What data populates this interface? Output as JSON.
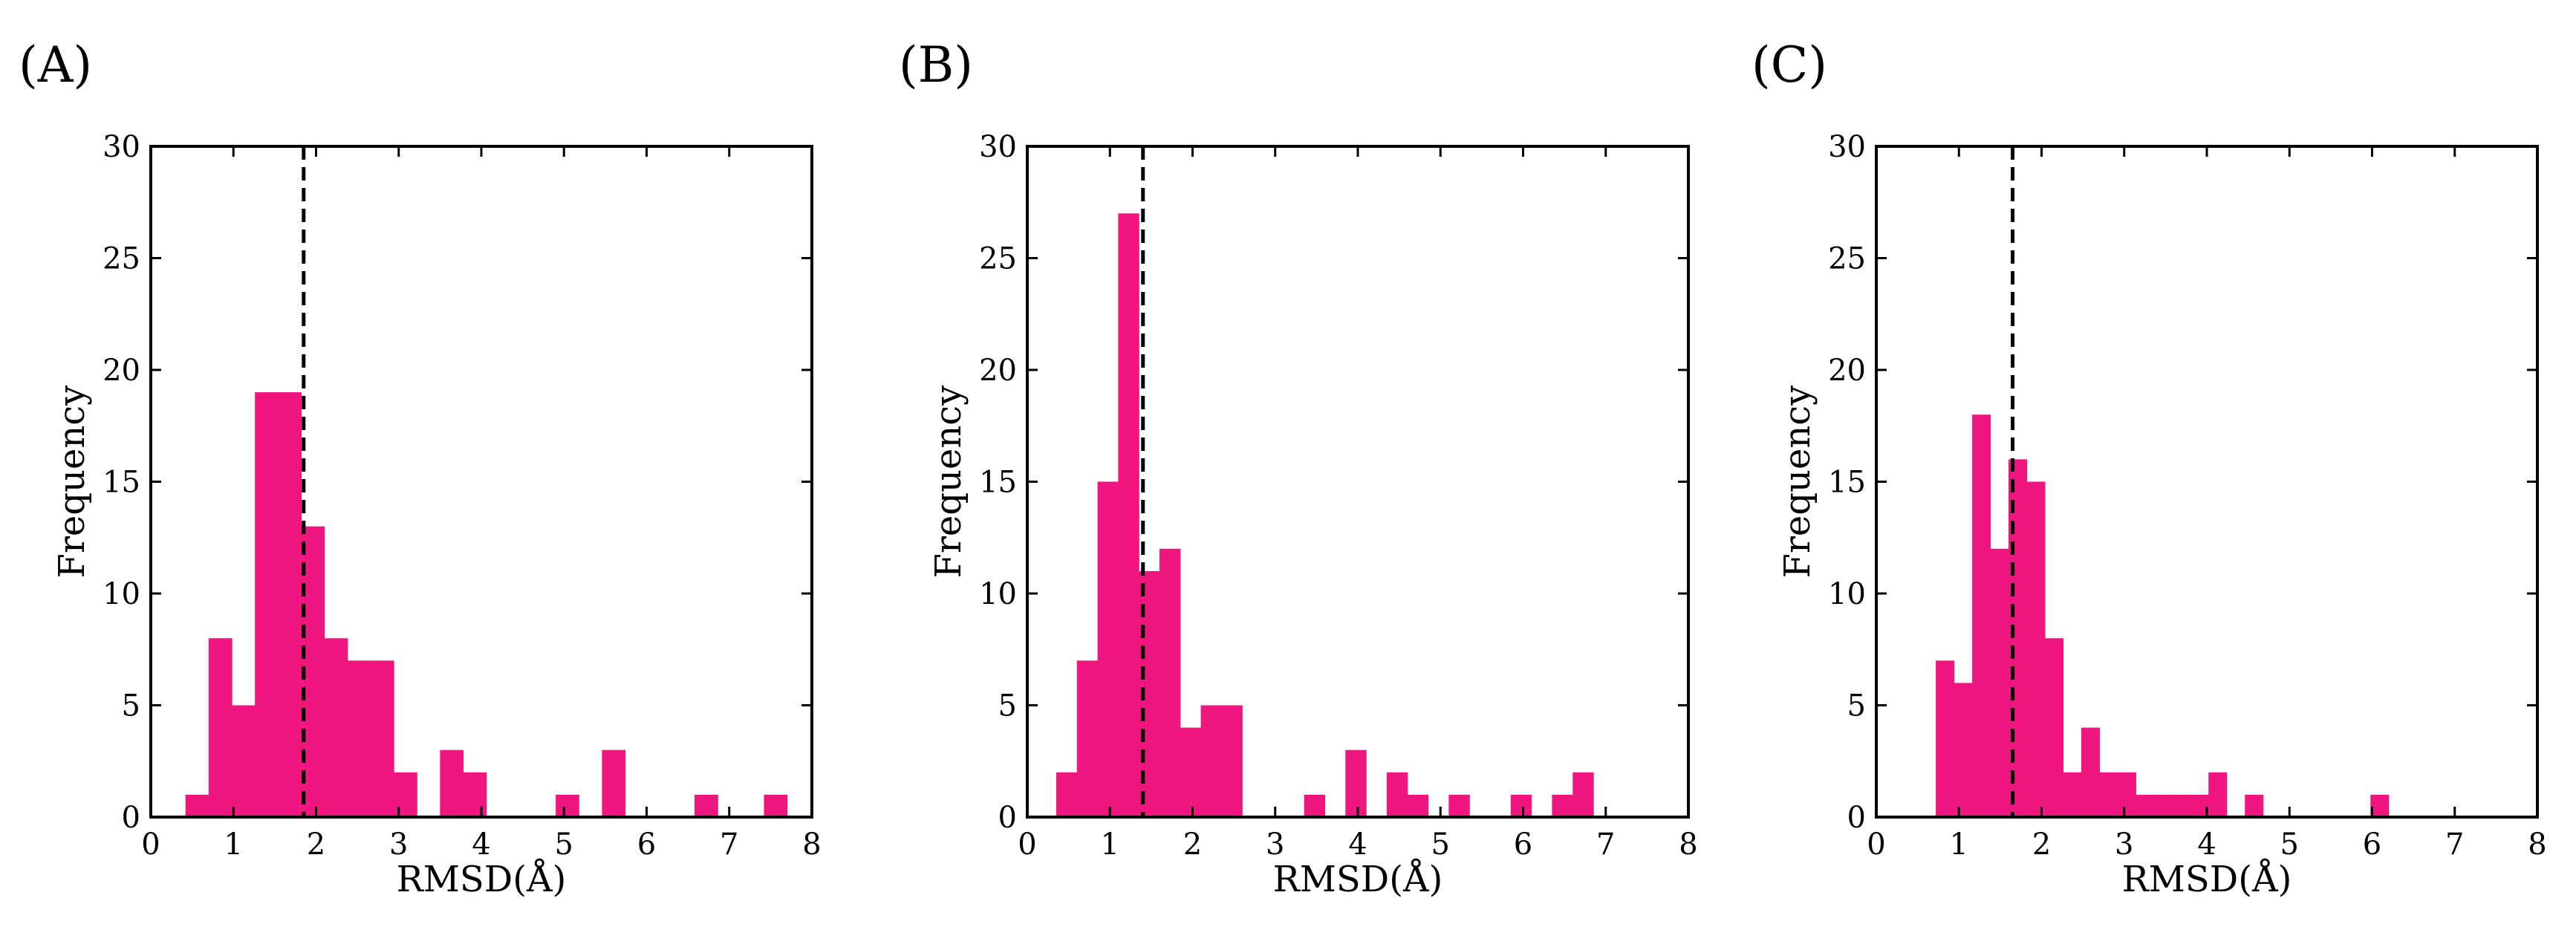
{
  "chart_data": [
    {
      "type": "bar",
      "panel_label": "(A)",
      "xlabel": "RMSD(Å)",
      "ylabel": "Frequency",
      "xlim": [
        0,
        8
      ],
      "ylim": [
        0,
        30
      ],
      "xticks": [
        "0",
        "1",
        "2",
        "3",
        "4",
        "5",
        "6",
        "7",
        "8"
      ],
      "yticks": [
        "0",
        "5",
        "10",
        "15",
        "20",
        "25",
        "30"
      ],
      "bar_color": "#F0167F",
      "reference_line_x": 1.85,
      "bins": [
        {
          "x0": 0.42,
          "x1": 0.7,
          "count": 1
        },
        {
          "x0": 0.7,
          "x1": 0.98,
          "count": 8
        },
        {
          "x0": 0.98,
          "x1": 1.26,
          "count": 5
        },
        {
          "x0": 1.26,
          "x1": 1.54,
          "count": 19
        },
        {
          "x0": 1.54,
          "x1": 1.82,
          "count": 19
        },
        {
          "x0": 1.82,
          "x1": 2.1,
          "count": 13
        },
        {
          "x0": 2.1,
          "x1": 2.38,
          "count": 8
        },
        {
          "x0": 2.38,
          "x1": 2.66,
          "count": 7
        },
        {
          "x0": 2.66,
          "x1": 2.94,
          "count": 7
        },
        {
          "x0": 2.94,
          "x1": 3.22,
          "count": 2
        },
        {
          "x0": 3.5,
          "x1": 3.78,
          "count": 3
        },
        {
          "x0": 3.78,
          "x1": 4.06,
          "count": 2
        },
        {
          "x0": 4.9,
          "x1": 5.18,
          "count": 1
        },
        {
          "x0": 5.46,
          "x1": 5.74,
          "count": 3
        },
        {
          "x0": 6.58,
          "x1": 6.86,
          "count": 1
        },
        {
          "x0": 7.42,
          "x1": 7.7,
          "count": 1
        }
      ]
    },
    {
      "type": "bar",
      "panel_label": "(B)",
      "xlabel": "RMSD(Å)",
      "ylabel": "Frequency",
      "xlim": [
        0,
        8
      ],
      "ylim": [
        0,
        30
      ],
      "xticks": [
        "0",
        "1",
        "2",
        "3",
        "4",
        "5",
        "6",
        "7",
        "8"
      ],
      "yticks": [
        "0",
        "5",
        "10",
        "15",
        "20",
        "25",
        "30"
      ],
      "bar_color": "#F0167F",
      "reference_line_x": 1.4,
      "bins": [
        {
          "x0": 0.35,
          "x1": 0.6,
          "count": 2
        },
        {
          "x0": 0.6,
          "x1": 0.85,
          "count": 7
        },
        {
          "x0": 0.85,
          "x1": 1.1,
          "count": 15
        },
        {
          "x0": 1.1,
          "x1": 1.35,
          "count": 27
        },
        {
          "x0": 1.35,
          "x1": 1.6,
          "count": 11
        },
        {
          "x0": 1.6,
          "x1": 1.85,
          "count": 12
        },
        {
          "x0": 1.85,
          "x1": 2.1,
          "count": 4
        },
        {
          "x0": 2.1,
          "x1": 2.35,
          "count": 5
        },
        {
          "x0": 2.35,
          "x1": 2.6,
          "count": 5
        },
        {
          "x0": 3.35,
          "x1": 3.6,
          "count": 1
        },
        {
          "x0": 3.85,
          "x1": 4.1,
          "count": 3
        },
        {
          "x0": 4.35,
          "x1": 4.6,
          "count": 2
        },
        {
          "x0": 4.6,
          "x1": 4.85,
          "count": 1
        },
        {
          "x0": 5.1,
          "x1": 5.35,
          "count": 1
        },
        {
          "x0": 5.85,
          "x1": 6.1,
          "count": 1
        },
        {
          "x0": 6.35,
          "x1": 6.6,
          "count": 1
        },
        {
          "x0": 6.6,
          "x1": 6.85,
          "count": 2
        }
      ]
    },
    {
      "type": "bar",
      "panel_label": "(C)",
      "xlabel": "RMSD(Å)",
      "ylabel": "Frequency",
      "xlim": [
        0,
        8
      ],
      "ylim": [
        0,
        30
      ],
      "xticks": [
        "0",
        "1",
        "2",
        "3",
        "4",
        "5",
        "6",
        "7",
        "8"
      ],
      "yticks": [
        "0",
        "5",
        "10",
        "15",
        "20",
        "25",
        "30"
      ],
      "bar_color": "#F0167F",
      "reference_line_x": 1.65,
      "bins": [
        {
          "x0": 0.72,
          "x1": 0.94,
          "count": 7
        },
        {
          "x0": 0.94,
          "x1": 1.16,
          "count": 6
        },
        {
          "x0": 1.16,
          "x1": 1.38,
          "count": 18
        },
        {
          "x0": 1.38,
          "x1": 1.6,
          "count": 12
        },
        {
          "x0": 1.6,
          "x1": 1.82,
          "count": 16
        },
        {
          "x0": 1.82,
          "x1": 2.04,
          "count": 15
        },
        {
          "x0": 2.04,
          "x1": 2.26,
          "count": 8
        },
        {
          "x0": 2.26,
          "x1": 2.48,
          "count": 2
        },
        {
          "x0": 2.48,
          "x1": 2.7,
          "count": 4
        },
        {
          "x0": 2.7,
          "x1": 2.92,
          "count": 2
        },
        {
          "x0": 2.92,
          "x1": 3.14,
          "count": 2
        },
        {
          "x0": 3.14,
          "x1": 3.36,
          "count": 1
        },
        {
          "x0": 3.36,
          "x1": 3.58,
          "count": 1
        },
        {
          "x0": 3.58,
          "x1": 3.8,
          "count": 1
        },
        {
          "x0": 3.8,
          "x1": 4.02,
          "count": 1
        },
        {
          "x0": 4.02,
          "x1": 4.24,
          "count": 2
        },
        {
          "x0": 4.46,
          "x1": 4.68,
          "count": 1
        },
        {
          "x0": 5.98,
          "x1": 6.2,
          "count": 1
        }
      ]
    }
  ]
}
